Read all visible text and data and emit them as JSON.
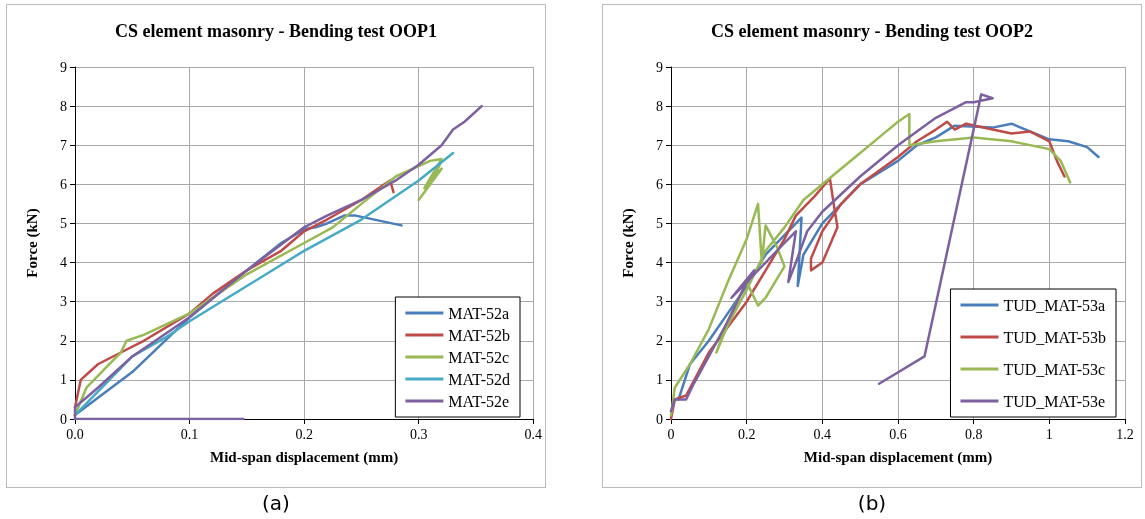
{
  "chart_data": [
    {
      "type": "line",
      "title": "CS element masonry - Bending test OOP1",
      "xlabel": "Mid-span displacement (mm)",
      "ylabel": "Force (kN)",
      "xlim": [
        0,
        0.4
      ],
      "xticks": [
        {
          "value": 0,
          "label": "0.0"
        },
        0.1,
        0.2,
        0.3,
        0.4
      ],
      "ylim": [
        0,
        9
      ],
      "yticks": [
        0,
        1,
        2,
        3,
        4,
        5,
        6,
        7,
        8,
        9
      ],
      "grid": true,
      "legend": "bottom right",
      "marker": "none",
      "line_style": "solid",
      "annotations": [
        "(a)"
      ],
      "series": [
        {
          "name": "MAT-52a",
          "color": "#4a7ebb",
          "x": [
            0,
            0.05,
            0.1,
            0.15,
            0.18,
            0.2,
            0.21,
            0.22,
            0.235,
            0.245,
            0.285
          ],
          "values": [
            0.1,
            1.2,
            2.6,
            3.8,
            4.5,
            4.85,
            4.9,
            5.0,
            5.2,
            5.2,
            4.95
          ]
        },
        {
          "name": "MAT-52b",
          "color": "#be4b48",
          "x": [
            0,
            0.005,
            0.02,
            0.04,
            0.06,
            0.1,
            0.12,
            0.15,
            0.18,
            0.2,
            0.22,
            0.25,
            0.27,
            0.275,
            0.278
          ],
          "values": [
            0.3,
            1.0,
            1.4,
            1.7,
            2.0,
            2.7,
            3.2,
            3.8,
            4.3,
            4.8,
            5.1,
            5.6,
            6.0,
            6.1,
            5.8
          ]
        },
        {
          "name": "MAT-52c",
          "color": "#98b954",
          "x": [
            0,
            0.01,
            0.03,
            0.04,
            0.045,
            0.06,
            0.1,
            0.15,
            0.2,
            0.225,
            0.25,
            0.28,
            0.31,
            0.32,
            0.305,
            0.32,
            0.3,
            0.31,
            0.32
          ],
          "values": [
            0.1,
            0.8,
            1.4,
            1.7,
            2.0,
            2.15,
            2.7,
            3.7,
            4.5,
            4.9,
            5.5,
            6.2,
            6.6,
            6.65,
            5.9,
            6.4,
            5.6,
            6.0,
            6.6
          ]
        },
        {
          "name": "MAT-52d",
          "color": "#46aac5",
          "x": [
            0,
            0.03,
            0.05,
            0.08,
            0.1,
            0.15,
            0.2,
            0.25,
            0.3,
            0.33
          ],
          "values": [
            0.1,
            1.0,
            1.6,
            2.1,
            2.5,
            3.4,
            4.3,
            5.1,
            6.1,
            6.8
          ]
        },
        {
          "name": "MAT-52e",
          "color": "#7d60a0",
          "x": [
            0.147,
            0,
            0,
            0.02,
            0.05,
            0.08,
            0.1,
            0.15,
            0.2,
            0.22,
            0.25,
            0.28,
            0.3,
            0.32,
            0.33,
            0.34,
            0.355
          ],
          "values": [
            0,
            0,
            0.3,
            0.8,
            1.6,
            2.2,
            2.6,
            3.8,
            4.9,
            5.2,
            5.6,
            6.1,
            6.5,
            7.0,
            7.4,
            7.6,
            8.0
          ]
        }
      ]
    },
    {
      "type": "line",
      "title": "CS element masonry - Bending test OOP2",
      "xlabel": "Mid-span displacement (mm)",
      "ylabel": "Force (kN)",
      "xlim": [
        0,
        1.2
      ],
      "xticks": [
        0,
        0.2,
        0.4,
        0.6,
        0.8,
        1,
        1.2
      ],
      "ylim": [
        0,
        9
      ],
      "yticks": [
        0,
        1,
        2,
        3,
        4,
        5,
        6,
        7,
        8,
        9
      ],
      "grid": true,
      "legend": "bottom right",
      "marker": "none",
      "line_style": "solid",
      "annotations": [
        "(b)"
      ],
      "series": [
        {
          "name": "TUD_MAT-53a",
          "color": "#4a7ebb",
          "x": [
            0.02,
            0.05,
            0.1,
            0.15,
            0.2,
            0.25,
            0.3,
            0.345,
            0.335,
            0.35,
            0.4,
            0.5,
            0.6,
            0.65,
            0.7,
            0.75,
            0.85,
            0.9,
            0.95,
            1.0,
            1.05,
            1.1,
            1.13
          ],
          "values": [
            0.5,
            1.4,
            2.0,
            2.7,
            3.4,
            4.2,
            4.7,
            5.15,
            3.4,
            4.2,
            5.0,
            6.0,
            6.6,
            7.0,
            7.2,
            7.5,
            7.45,
            7.55,
            7.35,
            7.15,
            7.1,
            6.95,
            6.7
          ]
        },
        {
          "name": "TUD_MAT-53b",
          "color": "#be4b48",
          "x": [
            0,
            0.01,
            0.04,
            0.1,
            0.2,
            0.3,
            0.33,
            0.38,
            0.42,
            0.43,
            0.44,
            0.4,
            0.37,
            0.37,
            0.4,
            0.45,
            0.5,
            0.6,
            0.65,
            0.7,
            0.73,
            0.75,
            0.78,
            0.85,
            0.9,
            0.95,
            1.0,
            1.02,
            1.04
          ],
          "values": [
            0,
            0.5,
            0.6,
            1.7,
            3.0,
            4.6,
            5.2,
            5.7,
            6.15,
            5.5,
            4.9,
            4.0,
            3.8,
            4.1,
            4.8,
            5.5,
            6.0,
            6.7,
            7.1,
            7.4,
            7.6,
            7.4,
            7.55,
            7.4,
            7.3,
            7.35,
            7.1,
            6.6,
            6.2
          ]
        },
        {
          "name": "TUD_MAT-53c",
          "color": "#98b954",
          "x": [
            0,
            0.01,
            0.05,
            0.1,
            0.15,
            0.2,
            0.23,
            0.24,
            0.25,
            0.28,
            0.3,
            0.25,
            0.23,
            0.2,
            0.15,
            0.12,
            0.15,
            0.2,
            0.25,
            0.3,
            0.35,
            0.4,
            0.5,
            0.55,
            0.6,
            0.63,
            0.63,
            0.7,
            0.8,
            0.9,
            1.0,
            1.03,
            1.055
          ],
          "values": [
            0.1,
            0.8,
            1.4,
            2.3,
            3.5,
            4.6,
            5.5,
            4.0,
            4.95,
            4.4,
            3.9,
            3.1,
            2.9,
            3.5,
            2.5,
            1.7,
            2.4,
            3.3,
            4.3,
            4.9,
            5.6,
            6.0,
            6.8,
            7.2,
            7.6,
            7.8,
            7.0,
            7.1,
            7.2,
            7.1,
            6.9,
            6.6,
            6.05
          ]
        },
        {
          "name": "TUD_MAT-53e",
          "color": "#7d60a0",
          "x": [
            0,
            0.01,
            0.04,
            0.06,
            0.1,
            0.15,
            0.2,
            0.22,
            0.16,
            0.2,
            0.25,
            0.3,
            0.33,
            0.31,
            0.33,
            0.36,
            0.4,
            0.5,
            0.6,
            0.7,
            0.78,
            0.8,
            0.85,
            0.82,
            0.67,
            0.55
          ],
          "values": [
            0.2,
            0.5,
            0.5,
            0.9,
            1.6,
            2.5,
            3.5,
            3.8,
            3.1,
            3.5,
            4.0,
            4.5,
            4.8,
            3.5,
            4.0,
            4.8,
            5.3,
            6.2,
            7.0,
            7.7,
            8.1,
            8.1,
            8.2,
            8.3,
            1.6,
            0.9
          ]
        }
      ]
    }
  ]
}
